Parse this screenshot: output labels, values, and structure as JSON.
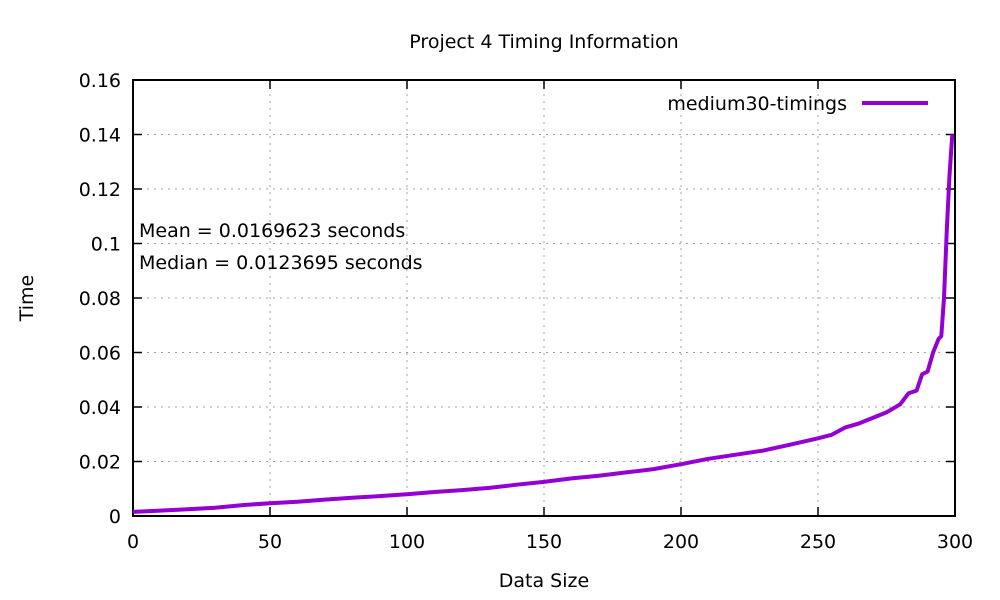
{
  "chart_data": {
    "type": "line",
    "title": "Project 4 Timing Information",
    "xlabel": "Data Size",
    "ylabel": "Time",
    "xlim": [
      0,
      300
    ],
    "ylim": [
      0,
      0.16
    ],
    "xticks": [
      "0",
      "50",
      "100",
      "150",
      "200",
      "250",
      "300"
    ],
    "yticks": [
      "0",
      "0.02",
      "0.04",
      "0.06",
      "0.08",
      "0.1",
      "0.12",
      "0.14",
      "0.16"
    ],
    "grid": true,
    "legend_position": "top-right",
    "annotations": [
      "Mean = 0.0169623 seconds",
      "Median = 0.0123695 seconds"
    ],
    "series": [
      {
        "name": "medium30-timings",
        "color": "#9400d3",
        "x": [
          0,
          10,
          20,
          30,
          40,
          50,
          60,
          70,
          80,
          90,
          100,
          110,
          120,
          130,
          140,
          150,
          160,
          170,
          180,
          190,
          200,
          210,
          220,
          230,
          240,
          250,
          255,
          260,
          265,
          270,
          275,
          280,
          283,
          286,
          288,
          290,
          292,
          294,
          295,
          296,
          297,
          298,
          299
        ],
        "y": [
          0.0015,
          0.002,
          0.0025,
          0.003,
          0.004,
          0.0047,
          0.0052,
          0.006,
          0.0067,
          0.0073,
          0.008,
          0.0088,
          0.0095,
          0.0103,
          0.0115,
          0.0125,
          0.0138,
          0.0148,
          0.016,
          0.0172,
          0.019,
          0.021,
          0.0225,
          0.024,
          0.0262,
          0.0285,
          0.0298,
          0.0325,
          0.034,
          0.036,
          0.038,
          0.041,
          0.045,
          0.046,
          0.052,
          0.053,
          0.06,
          0.065,
          0.066,
          0.08,
          0.105,
          0.125,
          0.14
        ]
      }
    ]
  }
}
